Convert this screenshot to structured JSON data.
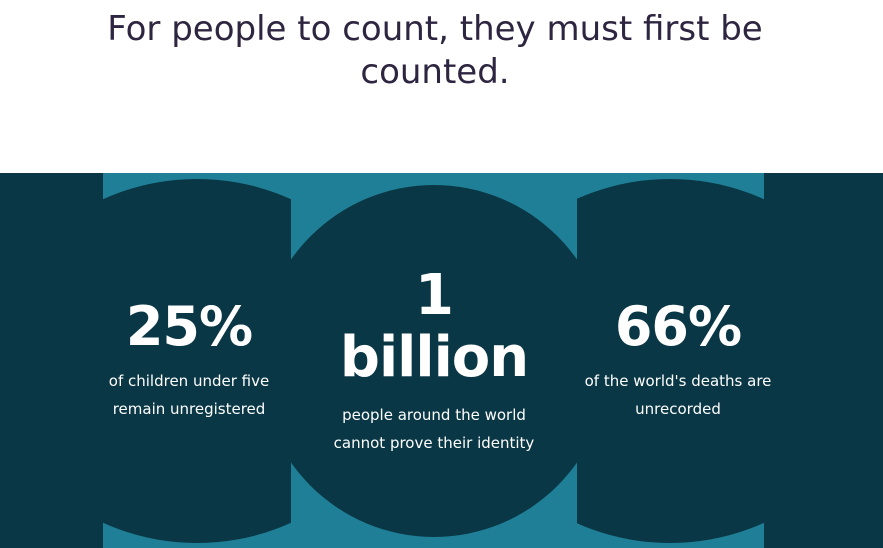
{
  "headline": {
    "line1": "For people to count, they must first be",
    "line2": "counted."
  },
  "stats": [
    {
      "value": "25%",
      "caption_line1": "of children under five",
      "caption_line2": "remain unregistered"
    },
    {
      "value_line1": "1",
      "value_line2": "billion",
      "caption_line1": "people around the world",
      "caption_line2": "cannot prove their identity"
    },
    {
      "value": "66%",
      "caption_line1": "of the world's deaths are",
      "caption_line2": "unrecorded"
    }
  ],
  "colors": {
    "headline_text": "#2e2540",
    "band_background": "#093745",
    "accent_shape": "#1f7f96",
    "stat_text": "#ffffff"
  }
}
